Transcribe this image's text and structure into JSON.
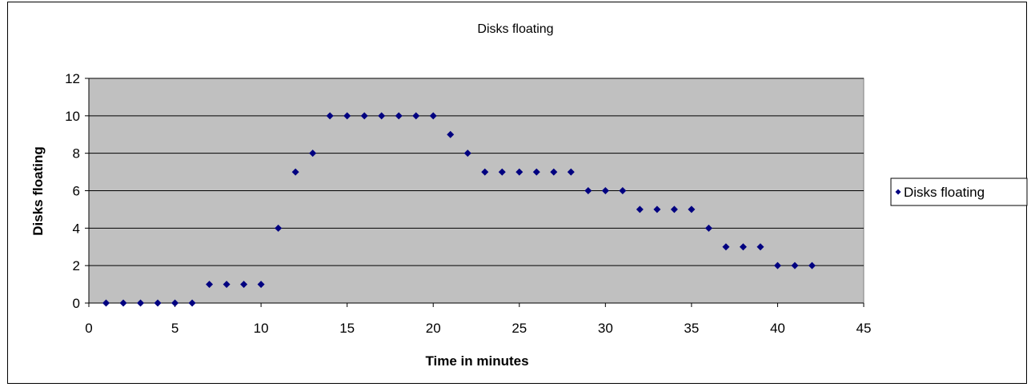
{
  "chart_data": {
    "type": "scatter",
    "title": "Disks floating",
    "xlabel": "Time in minutes",
    "ylabel": "Disks floating",
    "xlim": [
      0,
      45
    ],
    "ylim": [
      0,
      12
    ],
    "xticks": [
      0,
      5,
      10,
      15,
      20,
      25,
      30,
      35,
      40,
      45
    ],
    "yticks": [
      0,
      2,
      4,
      6,
      8,
      10,
      12
    ],
    "grid": "horizontal major gridlines",
    "plot_background": "#c0c0c0",
    "legend_position": "right",
    "series": [
      {
        "name": "Disks floating",
        "color": "#000080",
        "marker": "diamond",
        "x": [
          1,
          2,
          3,
          4,
          5,
          6,
          7,
          8,
          9,
          10,
          11,
          12,
          13,
          14,
          15,
          16,
          17,
          18,
          19,
          20,
          21,
          22,
          23,
          24,
          25,
          26,
          27,
          28,
          29,
          30,
          31,
          32,
          33,
          34,
          35,
          36,
          37,
          38,
          39,
          40,
          41,
          42
        ],
        "y": [
          0,
          0,
          0,
          0,
          0,
          0,
          1,
          1,
          1,
          1,
          4,
          7,
          8,
          10,
          10,
          10,
          10,
          10,
          10,
          10,
          9,
          8,
          7,
          7,
          7,
          7,
          7,
          7,
          6,
          6,
          6,
          5,
          5,
          5,
          5,
          4,
          3,
          3,
          3,
          2,
          2,
          2
        ]
      }
    ]
  }
}
